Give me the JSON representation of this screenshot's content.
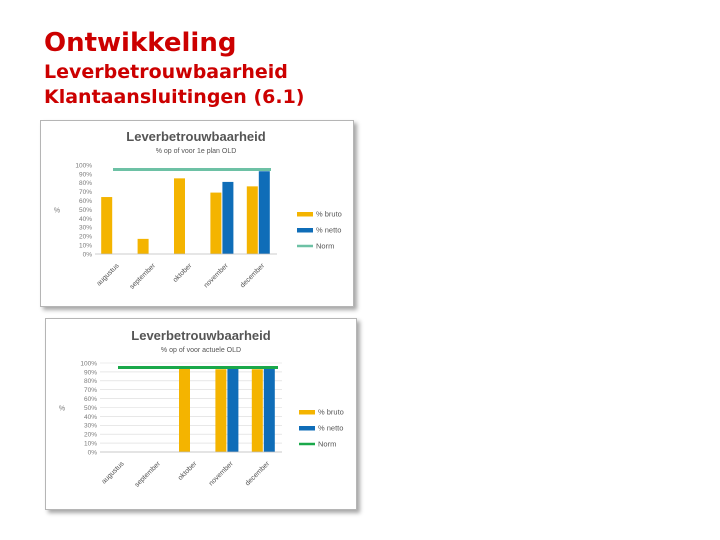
{
  "slide": {
    "title": "Ontwikkeling",
    "subtitle_1": "Leverbetrouwbaarheid",
    "subtitle_2": "Klantaansluitingen (6.1)"
  },
  "chart_data": [
    {
      "type": "bar",
      "title": "Leverbetrouwbaarheid",
      "subtitle": "% op of voor 1e plan OLD",
      "ylabel": "%",
      "xlabel": "",
      "categories": [
        "augustus",
        "september",
        "oktober",
        "november",
        "december"
      ],
      "yticks": [
        "0%",
        "10%",
        "20%",
        "30%",
        "40%",
        "50%",
        "60%",
        "70%",
        "80%",
        "90%",
        "100%"
      ],
      "ylim": [
        0,
        100
      ],
      "grid": false,
      "legend_position": "right",
      "series": [
        {
          "name": "% bruto",
          "color": "#f4b400",
          "values": [
            64,
            17,
            85,
            69,
            76
          ]
        },
        {
          "name": "% netto",
          "color": "#0f6db8",
          "values": [
            null,
            null,
            null,
            81,
            93
          ]
        }
      ],
      "lines": [
        {
          "name": "Norm",
          "color": "#6dc1a5",
          "value": 95
        }
      ]
    },
    {
      "type": "bar",
      "title": "Leverbetrouwbaarheid",
      "subtitle": "% op of voor actuele OLD",
      "ylabel": "%",
      "xlabel": "",
      "categories": [
        "augustus",
        "september",
        "oktober",
        "november",
        "december"
      ],
      "yticks": [
        "0%",
        "10%",
        "20%",
        "30%",
        "40%",
        "50%",
        "60%",
        "70%",
        "80%",
        "90%",
        "100%"
      ],
      "ylim": [
        0,
        100
      ],
      "grid": true,
      "legend_position": "right",
      "series": [
        {
          "name": "% bruto",
          "color": "#f4b400",
          "values": [
            null,
            null,
            95,
            93,
            93
          ]
        },
        {
          "name": "% netto",
          "color": "#0f6db8",
          "values": [
            null,
            null,
            null,
            95,
            96
          ]
        }
      ],
      "lines": [
        {
          "name": "Norm",
          "color": "#1aa84a",
          "value": 95
        }
      ]
    }
  ]
}
